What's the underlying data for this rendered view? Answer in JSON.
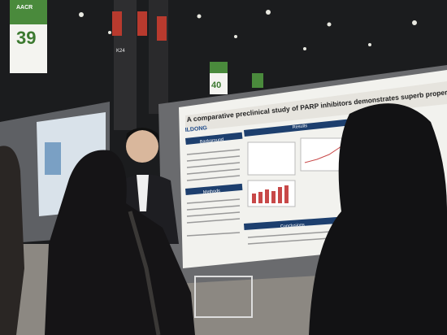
{
  "signs": [
    {
      "brand": "AACR",
      "number": "39"
    },
    {
      "number": "40"
    }
  ],
  "hanging_sign": "K24",
  "poster": {
    "title": "A comparative preclinical study of PARP inhibitors demonstrates superb properties",
    "logo": "ILDONG",
    "sections": [
      "Background",
      "Methods",
      "Results",
      "Conclusions"
    ]
  }
}
